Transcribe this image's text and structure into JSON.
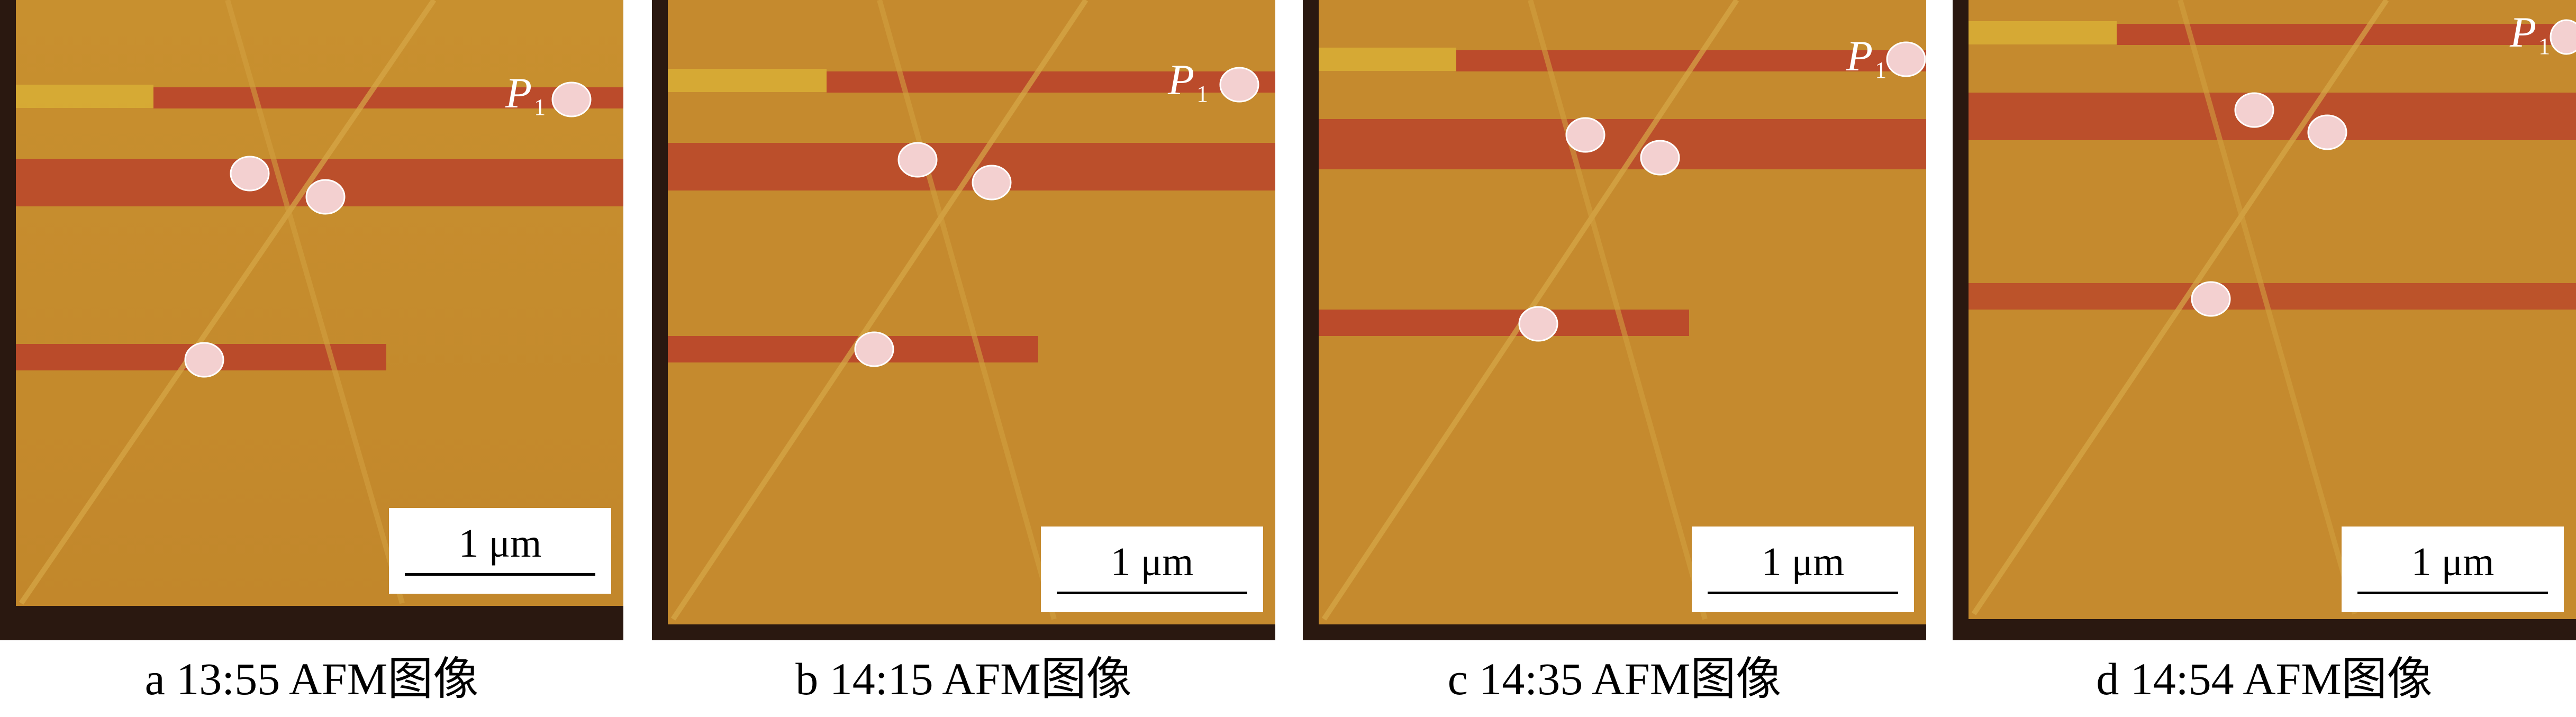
{
  "scale_label": "1 μm",
  "particle_label": {
    "letter": "P",
    "index": "1"
  },
  "panels": [
    {
      "caption": "a  13:55 AFM图像"
    },
    {
      "caption": "b  14:15 AFM图像"
    },
    {
      "caption": "c  14:35 AFM图像"
    },
    {
      "caption": "d  14:54 AFM图像"
    }
  ],
  "colors": {
    "substrate": "#c58a2e",
    "stripe": "#b8402a",
    "particle": "#f3d0d0",
    "frame": "#2a1810"
  }
}
